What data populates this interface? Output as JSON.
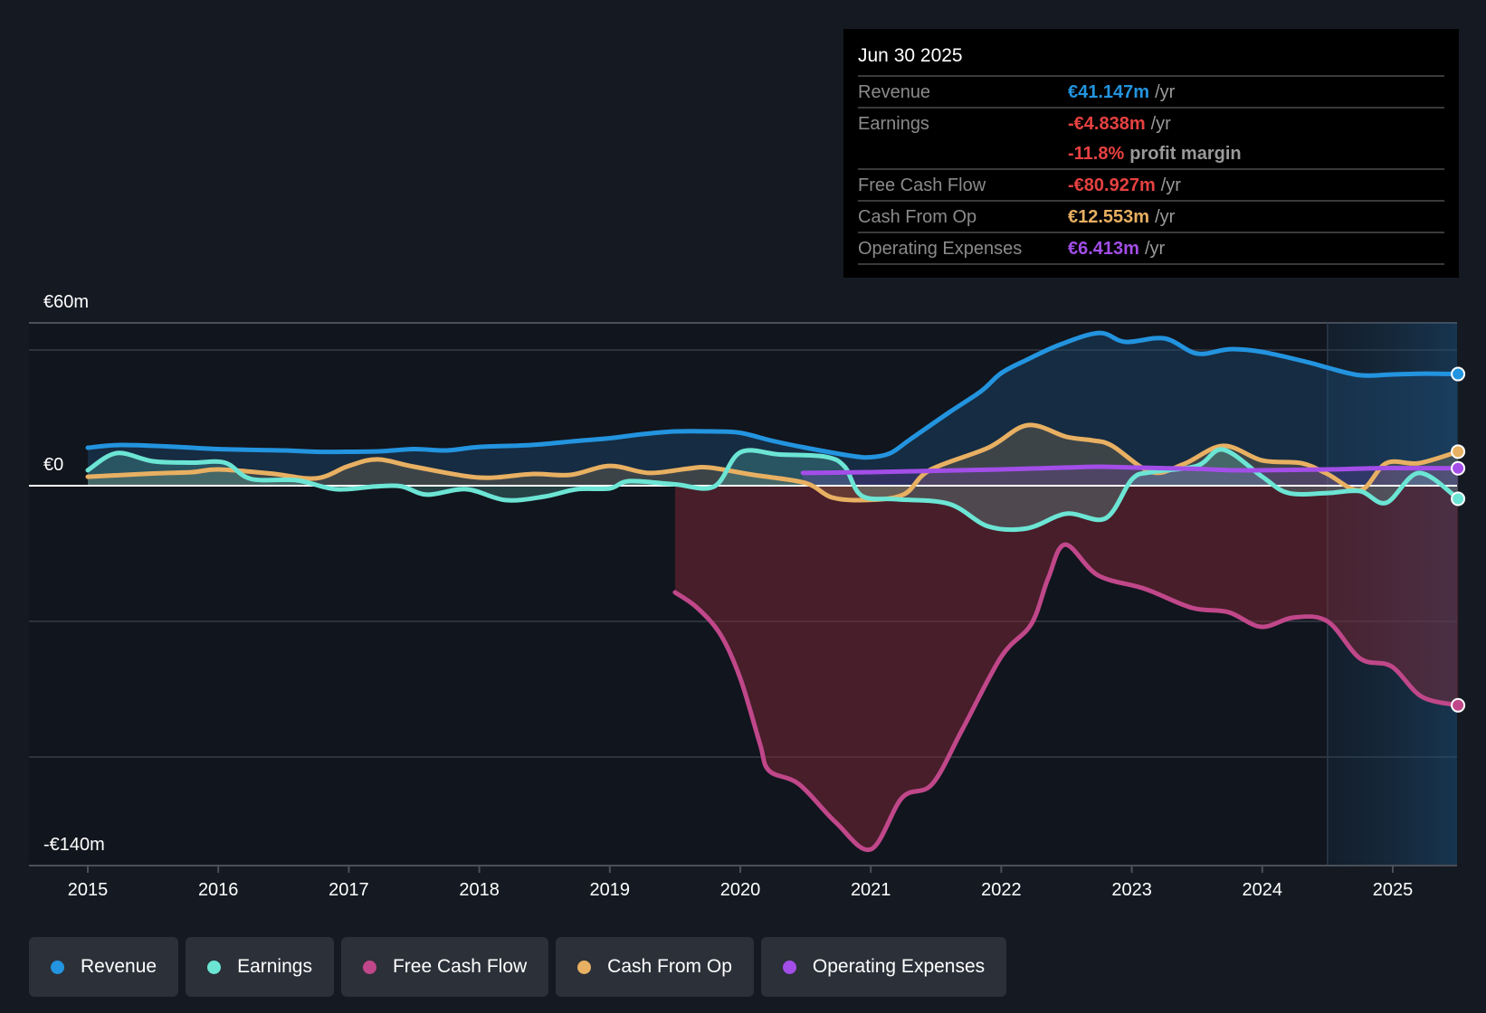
{
  "tooltip": {
    "date": "Jun 30 2025",
    "rows": [
      {
        "label": "Revenue",
        "value": "€41.147m",
        "unit": "/yr",
        "color": "#2394df"
      },
      {
        "label": "Earnings",
        "value": "-€4.838m",
        "unit": "/yr",
        "color": "#e64141"
      },
      {
        "label": "",
        "value": "-11.8%",
        "unit": "profit margin",
        "color": "#e64141"
      },
      {
        "label": "Free Cash Flow",
        "value": "-€80.927m",
        "unit": "/yr",
        "color": "#e64141"
      },
      {
        "label": "Cash From Op",
        "value": "€12.553m",
        "unit": "/yr",
        "color": "#e8b062"
      },
      {
        "label": "Operating Expenses",
        "value": "€6.413m",
        "unit": "/yr",
        "color": "#a34ee8"
      }
    ]
  },
  "legend": [
    {
      "label": "Revenue",
      "color": "#2394df"
    },
    {
      "label": "Earnings",
      "color": "#6ce5d4"
    },
    {
      "label": "Free Cash Flow",
      "color": "#c0478a"
    },
    {
      "label": "Cash From Op",
      "color": "#e8b062"
    },
    {
      "label": "Operating Expenses",
      "color": "#a34ee8"
    }
  ],
  "chart_data": {
    "type": "line",
    "title": "",
    "xlabel": "",
    "ylabel": "",
    "currency_unit": "€m",
    "x_ticks": [
      "2015",
      "2016",
      "2017",
      "2018",
      "2019",
      "2020",
      "2021",
      "2022",
      "2023",
      "2024",
      "2025"
    ],
    "y_tick_labels": [
      "€60m",
      "€0",
      "-€140m"
    ],
    "ylim": [
      -140,
      60
    ],
    "xlim": [
      2014.57,
      2025.5
    ],
    "gridlines": [
      60,
      50,
      0,
      -50,
      -100
    ],
    "highlight_range": [
      2024.5,
      2025.5
    ],
    "grid": true,
    "series": [
      {
        "name": "Revenue",
        "color": "#2394df",
        "points": [
          [
            2015.0,
            14
          ],
          [
            2015.25,
            15
          ],
          [
            2015.6,
            14.5
          ],
          [
            2016.0,
            13.5
          ],
          [
            2016.5,
            13
          ],
          [
            2016.75,
            12.5
          ],
          [
            2017.0,
            12.5
          ],
          [
            2017.25,
            12.7
          ],
          [
            2017.5,
            13.5
          ],
          [
            2017.75,
            13
          ],
          [
            2018.0,
            14.3
          ],
          [
            2018.4,
            15
          ],
          [
            2018.75,
            16.5
          ],
          [
            2019.0,
            17.5
          ],
          [
            2019.25,
            19
          ],
          [
            2019.5,
            20
          ],
          [
            2019.8,
            20
          ],
          [
            2020.0,
            19.5
          ],
          [
            2020.25,
            16.5
          ],
          [
            2020.5,
            14
          ],
          [
            2020.85,
            11
          ],
          [
            2021.0,
            10.5
          ],
          [
            2021.15,
            12
          ],
          [
            2021.3,
            17
          ],
          [
            2021.6,
            27
          ],
          [
            2021.85,
            35
          ],
          [
            2022.0,
            41.5
          ],
          [
            2022.2,
            46.5
          ],
          [
            2022.45,
            52
          ],
          [
            2022.75,
            56.3
          ],
          [
            2022.95,
            53
          ],
          [
            2023.25,
            54.3
          ],
          [
            2023.5,
            48.7
          ],
          [
            2023.75,
            50.3
          ],
          [
            2024.0,
            49.3
          ],
          [
            2024.35,
            45.5
          ],
          [
            2024.5,
            43.5
          ],
          [
            2024.75,
            40.7
          ],
          [
            2025.0,
            41
          ],
          [
            2025.25,
            41.3
          ],
          [
            2025.5,
            41.147
          ]
        ]
      },
      {
        "name": "Earnings",
        "color": "#6ce5d4",
        "points": [
          [
            2015.0,
            5.7
          ],
          [
            2015.22,
            12
          ],
          [
            2015.5,
            9
          ],
          [
            2015.8,
            8.5
          ],
          [
            2016.05,
            8.5
          ],
          [
            2016.25,
            2.5
          ],
          [
            2016.6,
            2
          ],
          [
            2016.9,
            -1.3
          ],
          [
            2017.2,
            -0.3
          ],
          [
            2017.4,
            -0.2
          ],
          [
            2017.6,
            -3.3
          ],
          [
            2017.9,
            -1.3
          ],
          [
            2018.2,
            -5.3
          ],
          [
            2018.5,
            -4
          ],
          [
            2018.75,
            -1.3
          ],
          [
            2019.0,
            -1
          ],
          [
            2019.15,
            1.7
          ],
          [
            2019.5,
            0.5
          ],
          [
            2019.8,
            -0.3
          ],
          [
            2020.0,
            12.3
          ],
          [
            2020.3,
            11.5
          ],
          [
            2020.65,
            10.7
          ],
          [
            2020.8,
            7
          ],
          [
            2020.93,
            -3.7
          ],
          [
            2021.2,
            -5
          ],
          [
            2021.6,
            -6.7
          ],
          [
            2021.9,
            -15
          ],
          [
            2022.2,
            -15.7
          ],
          [
            2022.5,
            -10.3
          ],
          [
            2022.8,
            -12
          ],
          [
            2023.0,
            2.3
          ],
          [
            2023.15,
            5
          ],
          [
            2023.5,
            7.3
          ],
          [
            2023.7,
            13.3
          ],
          [
            2024.0,
            3.3
          ],
          [
            2024.2,
            -2.7
          ],
          [
            2024.5,
            -2.7
          ],
          [
            2024.75,
            -2
          ],
          [
            2024.95,
            -6.3
          ],
          [
            2025.2,
            4.7
          ],
          [
            2025.5,
            -4.838
          ]
        ]
      },
      {
        "name": "Free Cash Flow",
        "color": "#c0478a",
        "points": [
          [
            2019.5,
            -39.3
          ],
          [
            2019.67,
            -45
          ],
          [
            2019.85,
            -55
          ],
          [
            2020.0,
            -71
          ],
          [
            2020.15,
            -95
          ],
          [
            2020.22,
            -105
          ],
          [
            2020.45,
            -110
          ],
          [
            2020.73,
            -124
          ],
          [
            2021.0,
            -134
          ],
          [
            2021.24,
            -115
          ],
          [
            2021.47,
            -110
          ],
          [
            2021.7,
            -90
          ],
          [
            2022.0,
            -63
          ],
          [
            2022.23,
            -51
          ],
          [
            2022.36,
            -34
          ],
          [
            2022.49,
            -21.7
          ],
          [
            2022.74,
            -33
          ],
          [
            2023.1,
            -38
          ],
          [
            2023.46,
            -45
          ],
          [
            2023.74,
            -46.6
          ],
          [
            2023.99,
            -52
          ],
          [
            2024.24,
            -48.6
          ],
          [
            2024.5,
            -50
          ],
          [
            2024.75,
            -63.7
          ],
          [
            2024.99,
            -66.6
          ],
          [
            2025.22,
            -77.7
          ],
          [
            2025.5,
            -80.927
          ]
        ]
      },
      {
        "name": "Cash From Op",
        "color": "#e8b062",
        "points": [
          [
            2015.0,
            3.3
          ],
          [
            2015.5,
            4.5
          ],
          [
            2015.8,
            5
          ],
          [
            2016.0,
            6
          ],
          [
            2016.4,
            4.5
          ],
          [
            2016.75,
            2.7
          ],
          [
            2017.0,
            7.3
          ],
          [
            2017.22,
            9.7
          ],
          [
            2017.5,
            7
          ],
          [
            2018.0,
            3
          ],
          [
            2018.4,
            4.3
          ],
          [
            2018.7,
            4
          ],
          [
            2019.0,
            7.3
          ],
          [
            2019.3,
            4.7
          ],
          [
            2019.6,
            6.3
          ],
          [
            2019.76,
            6.7
          ],
          [
            2020.1,
            4
          ],
          [
            2020.5,
            1
          ],
          [
            2020.7,
            -4.3
          ],
          [
            2020.95,
            -5.3
          ],
          [
            2021.25,
            -3.3
          ],
          [
            2021.45,
            5.7
          ],
          [
            2021.9,
            14
          ],
          [
            2022.2,
            22.3
          ],
          [
            2022.5,
            18
          ],
          [
            2022.7,
            16.7
          ],
          [
            2022.85,
            14.7
          ],
          [
            2023.15,
            5
          ],
          [
            2023.4,
            8
          ],
          [
            2023.7,
            14.7
          ],
          [
            2024.0,
            9.3
          ],
          [
            2024.3,
            8.3
          ],
          [
            2024.5,
            4.3
          ],
          [
            2024.75,
            -1.7
          ],
          [
            2024.95,
            8.3
          ],
          [
            2025.2,
            8.3
          ],
          [
            2025.5,
            12.553
          ]
        ]
      },
      {
        "name": "Operating Expenses",
        "color": "#a34ee8",
        "points": [
          [
            2020.48,
            4.7
          ],
          [
            2021.0,
            5
          ],
          [
            2021.5,
            5.5
          ],
          [
            2022.0,
            6
          ],
          [
            2022.5,
            6.7
          ],
          [
            2022.75,
            7
          ],
          [
            2023.0,
            6.7
          ],
          [
            2023.5,
            6.2
          ],
          [
            2023.75,
            5.7
          ],
          [
            2024.0,
            5.7
          ],
          [
            2024.5,
            6
          ],
          [
            2024.75,
            6.3
          ],
          [
            2025.0,
            6.5
          ],
          [
            2025.5,
            6.413
          ]
        ]
      }
    ]
  }
}
